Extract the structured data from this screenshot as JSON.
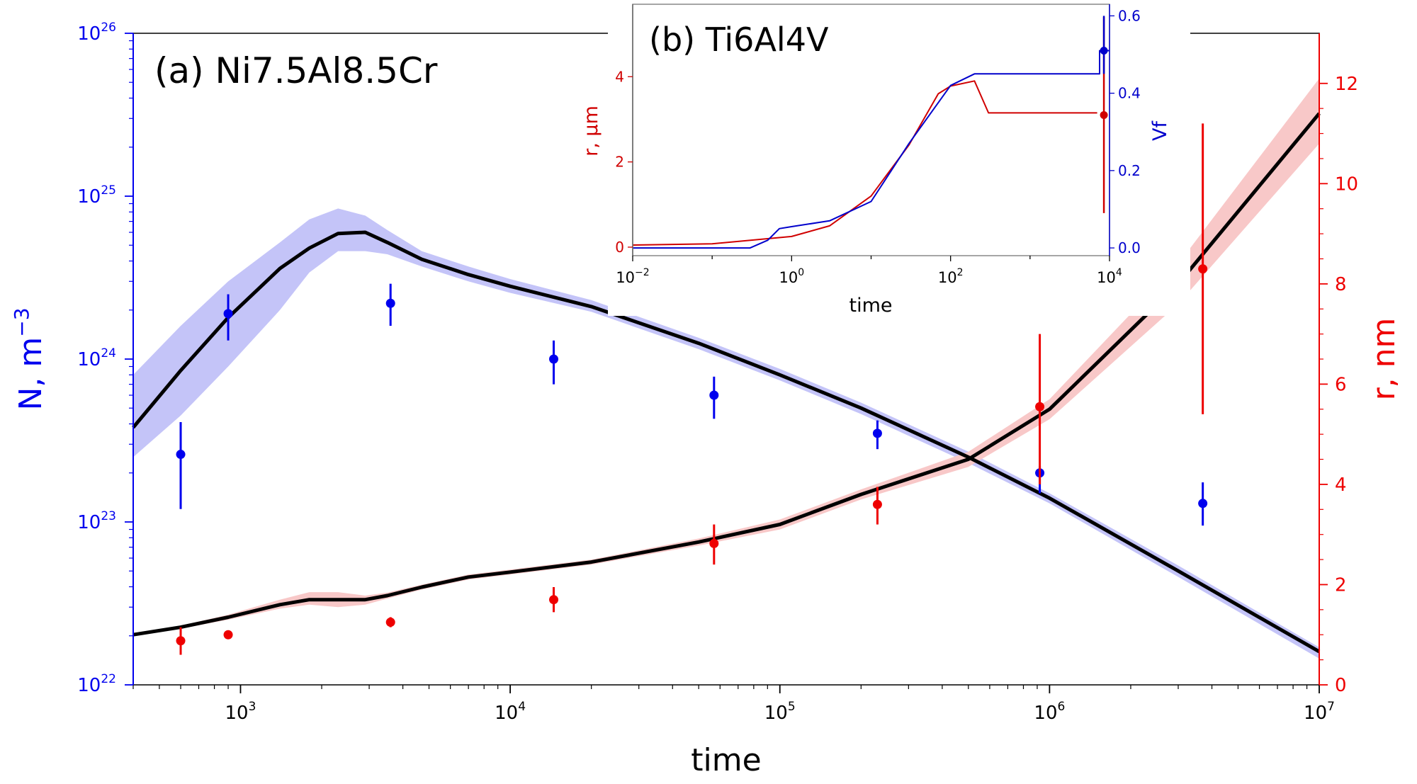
{
  "chart_data": [
    {
      "panel": "a",
      "type": "line",
      "title": "(a) Ni7.5Al8.5Cr",
      "xlabel": "time",
      "ylabel_left": "N, m",
      "ylabel_left_sup": "−3",
      "ylabel_right": "r, nm",
      "x_scale": "log",
      "y_left_scale": "log",
      "xlim": [
        400,
        10000000
      ],
      "ylim_left": [
        1e+22,
        1e+26
      ],
      "ylim_right": [
        0,
        13
      ],
      "x_ticks": [
        {
          "exp": 3,
          "base": "10",
          "sup": "3"
        },
        {
          "exp": 4,
          "base": "10",
          "sup": "4"
        },
        {
          "exp": 5,
          "base": "10",
          "sup": "5"
        },
        {
          "exp": 6,
          "base": "10",
          "sup": "6"
        },
        {
          "exp": 7,
          "base": "10",
          "sup": "7"
        }
      ],
      "y_left_ticks": [
        {
          "exp": 22,
          "base": "10",
          "sup": "22"
        },
        {
          "exp": 23,
          "base": "10",
          "sup": "23"
        },
        {
          "exp": 24,
          "base": "10",
          "sup": "24"
        },
        {
          "exp": 25,
          "base": "10",
          "sup": "25"
        },
        {
          "exp": 26,
          "base": "10",
          "sup": "26"
        }
      ],
      "y_right_ticks": [
        "0",
        "2",
        "4",
        "6",
        "8",
        "10",
        "12"
      ],
      "colors": {
        "N": "#0000ee",
        "N_band": "#c4c4f8",
        "r": "#ee0000",
        "r_band": "#f8c8c8",
        "model": "#000000"
      },
      "series": [
        {
          "role": "N model",
          "axis": "left",
          "x": [
            400,
            600,
            900,
            1400,
            1800,
            2300,
            2900,
            3500,
            4700,
            7000,
            10000,
            20000,
            50000,
            100000,
            200000,
            500000,
            1000000,
            3000000,
            10000000
          ],
          "y": [
            3.8e+23,
            8.5e+23,
            1.8e+24,
            3.6e+24,
            4.8e+24,
            5.9e+24,
            6e+24,
            5.2e+24,
            4.1e+24,
            3.3e+24,
            2.8e+24,
            2.1e+24,
            1.25e+24,
            8e+23,
            5e+23,
            2.5e+23,
            1.4e+23,
            5e+22,
            1.6e+22
          ],
          "band_upper": [
            8e+23,
            1.6e+24,
            3e+24,
            5.2e+24,
            7.2e+24,
            8.4e+24,
            7.6e+24,
            6.2e+24,
            4.6e+24,
            3.7e+24,
            3.1e+24,
            2.3e+24,
            1.35e+24,
            8.7e+23,
            5.4e+23,
            2.7e+23,
            1.5e+23,
            5.4e+22,
            1.7e+22
          ],
          "band_lower": [
            2.5e+23,
            4.5e+23,
            9e+23,
            2e+24,
            3.4e+24,
            4.6e+24,
            4.6e+24,
            4.4e+24,
            3.7e+24,
            3e+24,
            2.55e+24,
            1.95e+24,
            1.15e+24,
            7.4e+23,
            4.6e+23,
            2.3e+23,
            1.3e+23,
            4.6e+22,
            1.45e+22
          ]
        },
        {
          "role": "r model",
          "axis": "right",
          "x": [
            400,
            600,
            900,
            1400,
            1800,
            2300,
            2900,
            3500,
            4700,
            7000,
            10000,
            20000,
            50000,
            100000,
            200000,
            500000,
            1000000,
            3000000,
            10000000
          ],
          "y": [
            1.0,
            1.15,
            1.35,
            1.6,
            1.7,
            1.7,
            1.7,
            1.78,
            1.95,
            2.15,
            2.25,
            2.45,
            2.85,
            3.2,
            3.8,
            4.5,
            5.5,
            8.0,
            11.4
          ],
          "band_upper": [
            1.02,
            1.18,
            1.4,
            1.7,
            1.85,
            1.85,
            1.78,
            1.84,
            2.0,
            2.2,
            2.3,
            2.5,
            2.92,
            3.3,
            3.9,
            4.65,
            5.7,
            8.4,
            12.1
          ],
          "band_lower": [
            0.98,
            1.12,
            1.3,
            1.52,
            1.6,
            1.55,
            1.6,
            1.72,
            1.9,
            2.1,
            2.2,
            2.4,
            2.78,
            3.1,
            3.7,
            4.35,
            5.3,
            7.6,
            10.8
          ]
        },
        {
          "role": "N measured",
          "axis": "left",
          "points": [
            {
              "x": 600,
              "y": 2.6e+23,
              "lo": 1.2e+23,
              "hi": 4.1e+23
            },
            {
              "x": 900,
              "y": 1.9e+24,
              "lo": 1.3e+24,
              "hi": 2.5e+24
            },
            {
              "x": 3600,
              "y": 2.2e+24,
              "lo": 1.6e+24,
              "hi": 2.9e+24
            },
            {
              "x": 14500,
              "y": 1e+24,
              "lo": 7e+23,
              "hi": 1.3e+24
            },
            {
              "x": 57000,
              "y": 6e+23,
              "lo": 4.3e+23,
              "hi": 7.8e+23
            },
            {
              "x": 230000,
              "y": 3.5e+23,
              "lo": 2.8e+23,
              "hi": 4.2e+23
            },
            {
              "x": 920000,
              "y": 2e+23,
              "lo": 1.5e+23,
              "hi": 2.2e+23
            },
            {
              "x": 3700000,
              "y": 1.3e+23,
              "lo": 9.5e+22,
              "hi": 1.75e+23
            }
          ]
        },
        {
          "role": "r measured",
          "axis": "right",
          "points": [
            {
              "x": 600,
              "y": 0.88,
              "lo": 0.6,
              "hi": 1.15
            },
            {
              "x": 900,
              "y": 1.0,
              "lo": 0.95,
              "hi": 1.05
            },
            {
              "x": 3600,
              "y": 1.25,
              "lo": 1.15,
              "hi": 1.35
            },
            {
              "x": 14500,
              "y": 1.7,
              "lo": 1.45,
              "hi": 1.95
            },
            {
              "x": 57000,
              "y": 2.82,
              "lo": 2.4,
              "hi": 3.2
            },
            {
              "x": 230000,
              "y": 3.6,
              "lo": 3.2,
              "hi": 3.95
            },
            {
              "x": 920000,
              "y": 5.55,
              "lo": 4.0,
              "hi": 7.0
            },
            {
              "x": 3700000,
              "y": 8.3,
              "lo": 5.4,
              "hi": 11.2
            }
          ]
        }
      ]
    },
    {
      "panel": "b",
      "type": "line",
      "title": "(b) Ti6Al4V",
      "xlabel": "time",
      "ylabel_left": "r, μm",
      "ylabel_right": "Vf",
      "x_scale": "log",
      "xlim": [
        0.01,
        10000
      ],
      "ylim_left": [
        -0.2,
        5.7
      ],
      "ylim_right": [
        -0.02,
        0.63
      ],
      "x_ticks": [
        {
          "exp": -2,
          "base": "10",
          "sup": "−2"
        },
        {
          "exp": 0,
          "base": "10",
          "sup": "0"
        },
        {
          "exp": 2,
          "base": "10",
          "sup": "2"
        },
        {
          "exp": 4,
          "base": "10",
          "sup": "4"
        }
      ],
      "y_left_ticks": [
        "0",
        "2",
        "4"
      ],
      "y_right_ticks": [
        "0.0",
        "0.2",
        "0.4",
        "0.6"
      ],
      "colors": {
        "r": "#d00000",
        "Vf": "#0000cc"
      },
      "series": [
        {
          "role": "r",
          "axis": "left",
          "x": [
            0.01,
            0.1,
            1,
            3,
            10,
            30,
            70,
            100,
            200,
            300,
            7000
          ],
          "y": [
            0.05,
            0.08,
            0.25,
            0.5,
            1.2,
            2.4,
            3.6,
            3.78,
            3.9,
            3.15,
            3.15
          ]
        },
        {
          "role": "Vf",
          "axis": "right",
          "x": [
            0.01,
            0.2,
            0.3,
            0.5,
            0.7,
            1,
            3,
            10,
            30,
            100,
            200,
            260,
            7500,
            7500,
            10000
          ],
          "y": [
            0.0,
            0.0,
            0.0,
            0.02,
            0.05,
            0.055,
            0.07,
            0.12,
            0.27,
            0.42,
            0.45,
            0.45,
            0.45,
            0.51,
            0.51
          ]
        },
        {
          "role": "r measured",
          "axis": "left",
          "points": [
            {
              "x": 8500,
              "y": 3.1,
              "lo": 0.8,
              "hi": 5.4
            }
          ]
        },
        {
          "role": "Vf measured",
          "axis": "right",
          "points": [
            {
              "x": 8500,
              "y": 0.51,
              "lo": 0.45,
              "hi": 0.6
            }
          ]
        }
      ]
    }
  ]
}
